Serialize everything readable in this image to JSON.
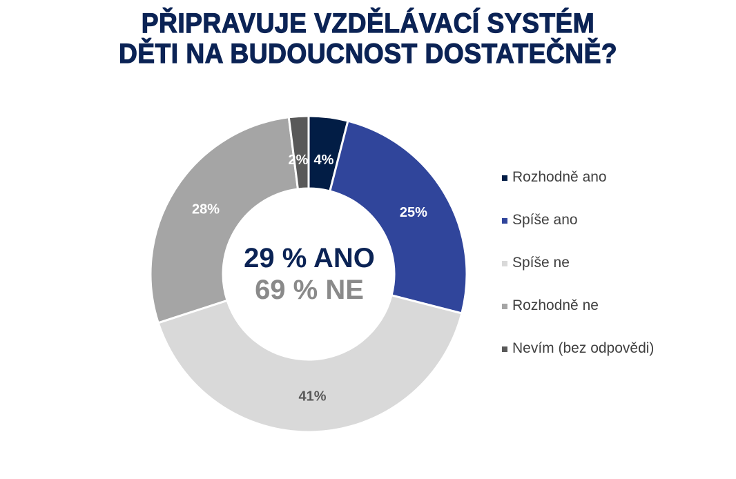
{
  "title": {
    "line1": "PŘIPRAVUJE VZDĚLÁVACÍ SYSTÉM",
    "line2": "DĚTI NA BUDOUCNOST DOSTATEČNĚ?"
  },
  "center": {
    "yes": "29 % ANO",
    "no": "69 % NE"
  },
  "legend": [
    {
      "label": "Rozhodně ano",
      "color": "#021d45"
    },
    {
      "label": "Spíše ano",
      "color": "#30459b"
    },
    {
      "label": "Spíše ne",
      "color": "#d9d9d9"
    },
    {
      "label": "Rozhodně ne",
      "color": "#a5a5a5"
    },
    {
      "label": "Nevím (bez odpovědi)",
      "color": "#595959"
    }
  ],
  "chart_data": {
    "type": "pie",
    "subtype": "donut",
    "title": "PŘIPRAVUJE VZDĚLÁVACÍ SYSTÉM DĚTI NA BUDOUCNOST DOSTATEČNĚ?",
    "categories": [
      "Rozhodně ano",
      "Spíše ano",
      "Spíše ne",
      "Rozhodně ne",
      "Nevím (bez odpovědi)"
    ],
    "values": [
      4,
      25,
      41,
      28,
      2
    ],
    "labels": [
      "4%",
      "25%",
      "41%",
      "28%",
      "2%"
    ],
    "colors": [
      "#021d45",
      "#30459b",
      "#d9d9d9",
      "#a5a5a5",
      "#595959"
    ],
    "label_colors": [
      "#ffffff",
      "#ffffff",
      "#595959",
      "#ffffff",
      "#ffffff"
    ],
    "center_annotations": [
      "29 % ANO",
      "69 % NE"
    ],
    "legend_position": "right",
    "start_angle": "12 o'clock, clockwise"
  }
}
